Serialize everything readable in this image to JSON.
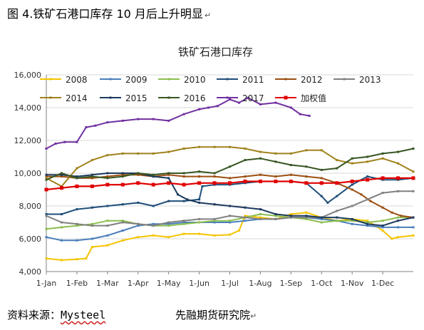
{
  "header": {
    "caption": "图 4.铁矿石港口库存 10 月后上升明显",
    "return_mark": "↵"
  },
  "footer": {
    "source_label": "资料来源：",
    "source_name": "Mysteel",
    "institution": "先融期货研究院",
    "return_mark": "↵"
  },
  "colors": {
    "2008": "#f5c400",
    "2009": "#4a7ebb",
    "2010": "#8cbe50",
    "2011": "#1f4e79",
    "2012": "#9c4f12",
    "2013": "#808080",
    "2014": "#a0821c",
    "2015": "#1c3a5e",
    "2016": "#375623",
    "2017": "#7030a0",
    "加权值": "#e00000"
  },
  "chart_data": {
    "type": "line",
    "title": "铁矿石港口库存",
    "ylim": [
      4000,
      16000
    ],
    "yticks": [
      "4,000",
      "6,000",
      "8,000",
      "10,000",
      "12,000",
      "14,000",
      "16,000"
    ],
    "x_ticks": [
      "1-Jan",
      "1-Feb",
      "1-Mar",
      "1-Apr",
      "1-May",
      "1-Jun",
      "1-Jul",
      "1-Aug",
      "1-Sep",
      "1-Oct",
      "1-Nov",
      "1-Dec"
    ],
    "x_domain": [
      0,
      12
    ],
    "legend_position": "top",
    "series": [
      {
        "name": "2008",
        "x": [
          0,
          0.5,
          1,
          1.3,
          1.5,
          2,
          2.5,
          3,
          3.5,
          4,
          4.5,
          5,
          5.5,
          6,
          6.3,
          6.5,
          7,
          7.5,
          8,
          8.5,
          9,
          9.5,
          10,
          10.5,
          11,
          11.3,
          11.5,
          12
        ],
        "y": [
          4800,
          4700,
          4750,
          4800,
          5500,
          5600,
          5900,
          6100,
          6200,
          6100,
          6300,
          6300,
          6200,
          6250,
          6500,
          7400,
          7300,
          7200,
          7500,
          7600,
          7300,
          7100,
          7200,
          7100,
          6500,
          6000,
          6100,
          6200
        ]
      },
      {
        "name": "2009",
        "x": [
          0,
          0.5,
          1,
          1.5,
          2,
          2.5,
          3,
          3.5,
          4,
          4.5,
          5,
          5.5,
          6,
          6.5,
          7,
          7.5,
          8,
          8.5,
          9,
          9.5,
          10,
          10.5,
          11,
          11.5,
          12
        ],
        "y": [
          6100,
          5900,
          5900,
          6000,
          6200,
          6500,
          6800,
          6900,
          6900,
          7000,
          7000,
          7000,
          7000,
          7100,
          7200,
          7200,
          7300,
          7300,
          7200,
          7100,
          6900,
          6800,
          6700,
          6700,
          6700
        ]
      },
      {
        "name": "2010",
        "x": [
          0,
          0.5,
          1,
          1.5,
          2,
          2.5,
          3,
          3.5,
          4,
          4.5,
          5,
          5.5,
          6,
          6.5,
          7,
          7.5,
          8,
          8.5,
          9,
          9.5,
          10,
          10.5,
          11,
          11.5,
          12
        ],
        "y": [
          6600,
          6700,
          6800,
          6900,
          7100,
          7100,
          6900,
          6800,
          6800,
          6900,
          7000,
          7100,
          7100,
          7300,
          7500,
          7400,
          7300,
          7200,
          7000,
          7100,
          7100,
          7000,
          7100,
          7300,
          7300
        ]
      },
      {
        "name": "2011",
        "x": [
          0,
          0.5,
          1,
          1.5,
          2,
          2.5,
          3,
          3.5,
          4,
          4.5,
          5,
          5.1,
          5.5,
          6,
          6.5,
          7,
          7.5,
          8,
          8.5,
          9,
          9.2,
          9.5,
          10,
          10.5,
          11,
          11.5,
          12
        ],
        "y": [
          7500,
          7500,
          7800,
          7900,
          8000,
          8100,
          8200,
          8000,
          8300,
          8300,
          8400,
          9200,
          9300,
          9300,
          9400,
          9500,
          9500,
          9500,
          9400,
          8600,
          8200,
          8600,
          9300,
          9800,
          9600,
          9600,
          9700
        ]
      },
      {
        "name": "2012",
        "x": [
          0,
          0.5,
          1,
          1.5,
          2,
          2.5,
          3,
          3.5,
          4,
          4.5,
          5,
          5.5,
          6,
          6.5,
          7,
          7.5,
          8,
          8.5,
          9,
          9.5,
          10,
          10.3,
          10.6,
          11,
          11.3,
          11.6,
          12
        ],
        "y": [
          9800,
          9800,
          9700,
          9700,
          9800,
          9900,
          9900,
          9800,
          9900,
          9800,
          9800,
          9800,
          9700,
          9800,
          9900,
          9800,
          9900,
          9800,
          9700,
          9400,
          9000,
          8700,
          8300,
          7900,
          7600,
          7400,
          7300
        ]
      },
      {
        "name": "2013",
        "x": [
          0,
          0.5,
          1,
          1.5,
          2,
          2.5,
          3,
          3.5,
          4,
          4.5,
          5,
          5.5,
          6,
          6.5,
          7,
          7.5,
          8,
          8.5,
          9,
          9.5,
          10,
          10.5,
          11,
          11.5,
          12
        ],
        "y": [
          7400,
          7000,
          6900,
          6800,
          6800,
          7000,
          6900,
          6800,
          7000,
          7100,
          7200,
          7200,
          7400,
          7300,
          7200,
          7200,
          7300,
          7300,
          7300,
          7700,
          8000,
          8400,
          8800,
          8900,
          8900
        ]
      },
      {
        "name": "2014",
        "x": [
          0,
          0.5,
          1,
          1.5,
          2,
          2.5,
          3,
          3.5,
          4,
          4.5,
          5,
          5.5,
          6,
          6.5,
          7,
          7.5,
          8,
          8.5,
          9,
          9.5,
          10,
          10.5,
          11,
          11.5,
          12
        ],
        "y": [
          9700,
          9200,
          10300,
          10800,
          11100,
          11200,
          11200,
          11200,
          11300,
          11500,
          11600,
          11600,
          11600,
          11500,
          11300,
          11200,
          11200,
          11400,
          11400,
          10800,
          10600,
          10700,
          10900,
          10600,
          10100
        ]
      },
      {
        "name": "2015",
        "x": [
          0,
          0.5,
          1,
          1.5,
          2,
          2.5,
          3,
          3.5,
          4,
          4.3,
          4.6,
          5,
          5.5,
          6,
          6.5,
          7,
          7.5,
          8,
          8.5,
          9,
          9.5,
          10,
          10.5,
          11,
          11.5,
          12
        ],
        "y": [
          9900,
          9900,
          9800,
          9900,
          10000,
          10000,
          10000,
          9800,
          9700,
          8700,
          8400,
          8200,
          8100,
          8000,
          7900,
          7800,
          7500,
          7400,
          7400,
          7300,
          7300,
          7200,
          6900,
          6800,
          7100,
          7300
        ]
      },
      {
        "name": "2016",
        "x": [
          0,
          0.5,
          1,
          1.5,
          2,
          2.5,
          3,
          3.5,
          4,
          4.5,
          5,
          5.5,
          6,
          6.5,
          7,
          7.5,
          8,
          8.5,
          9,
          9.5,
          10,
          10.5,
          11,
          11.5,
          12
        ],
        "y": [
          9600,
          10000,
          9700,
          9800,
          9700,
          9800,
          10000,
          9900,
          10000,
          10000,
          10100,
          10000,
          10400,
          10800,
          10900,
          10700,
          10500,
          10400,
          10200,
          10300,
          10900,
          11000,
          11200,
          11300,
          11500
        ]
      },
      {
        "name": "2017",
        "x": [
          0,
          0.3,
          0.6,
          1,
          1.3,
          1.6,
          2,
          2.5,
          3,
          3.5,
          4,
          4.5,
          5,
          5.3,
          5.6,
          6,
          6.3,
          6.6,
          7,
          7.5,
          8,
          8.3,
          8.6
        ],
        "y": [
          11500,
          11800,
          11900,
          11900,
          12800,
          12900,
          13100,
          13200,
          13300,
          13300,
          13200,
          13600,
          13900,
          14000,
          14100,
          14500,
          14300,
          14600,
          14200,
          14300,
          14000,
          13600,
          13500
        ]
      },
      {
        "name": "加权值",
        "x": [
          0,
          0.5,
          1,
          1.5,
          2,
          2.5,
          3,
          3.5,
          4,
          4.5,
          5,
          5.5,
          6,
          6.5,
          7,
          7.5,
          8,
          8.5,
          9,
          9.5,
          10,
          10.5,
          11,
          11.5,
          12
        ],
        "y": [
          9000,
          9100,
          9200,
          9200,
          9300,
          9300,
          9400,
          9300,
          9400,
          9300,
          9400,
          9400,
          9400,
          9500,
          9500,
          9500,
          9500,
          9400,
          9400,
          9400,
          9500,
          9600,
          9700,
          9700,
          9700
        ]
      }
    ]
  }
}
